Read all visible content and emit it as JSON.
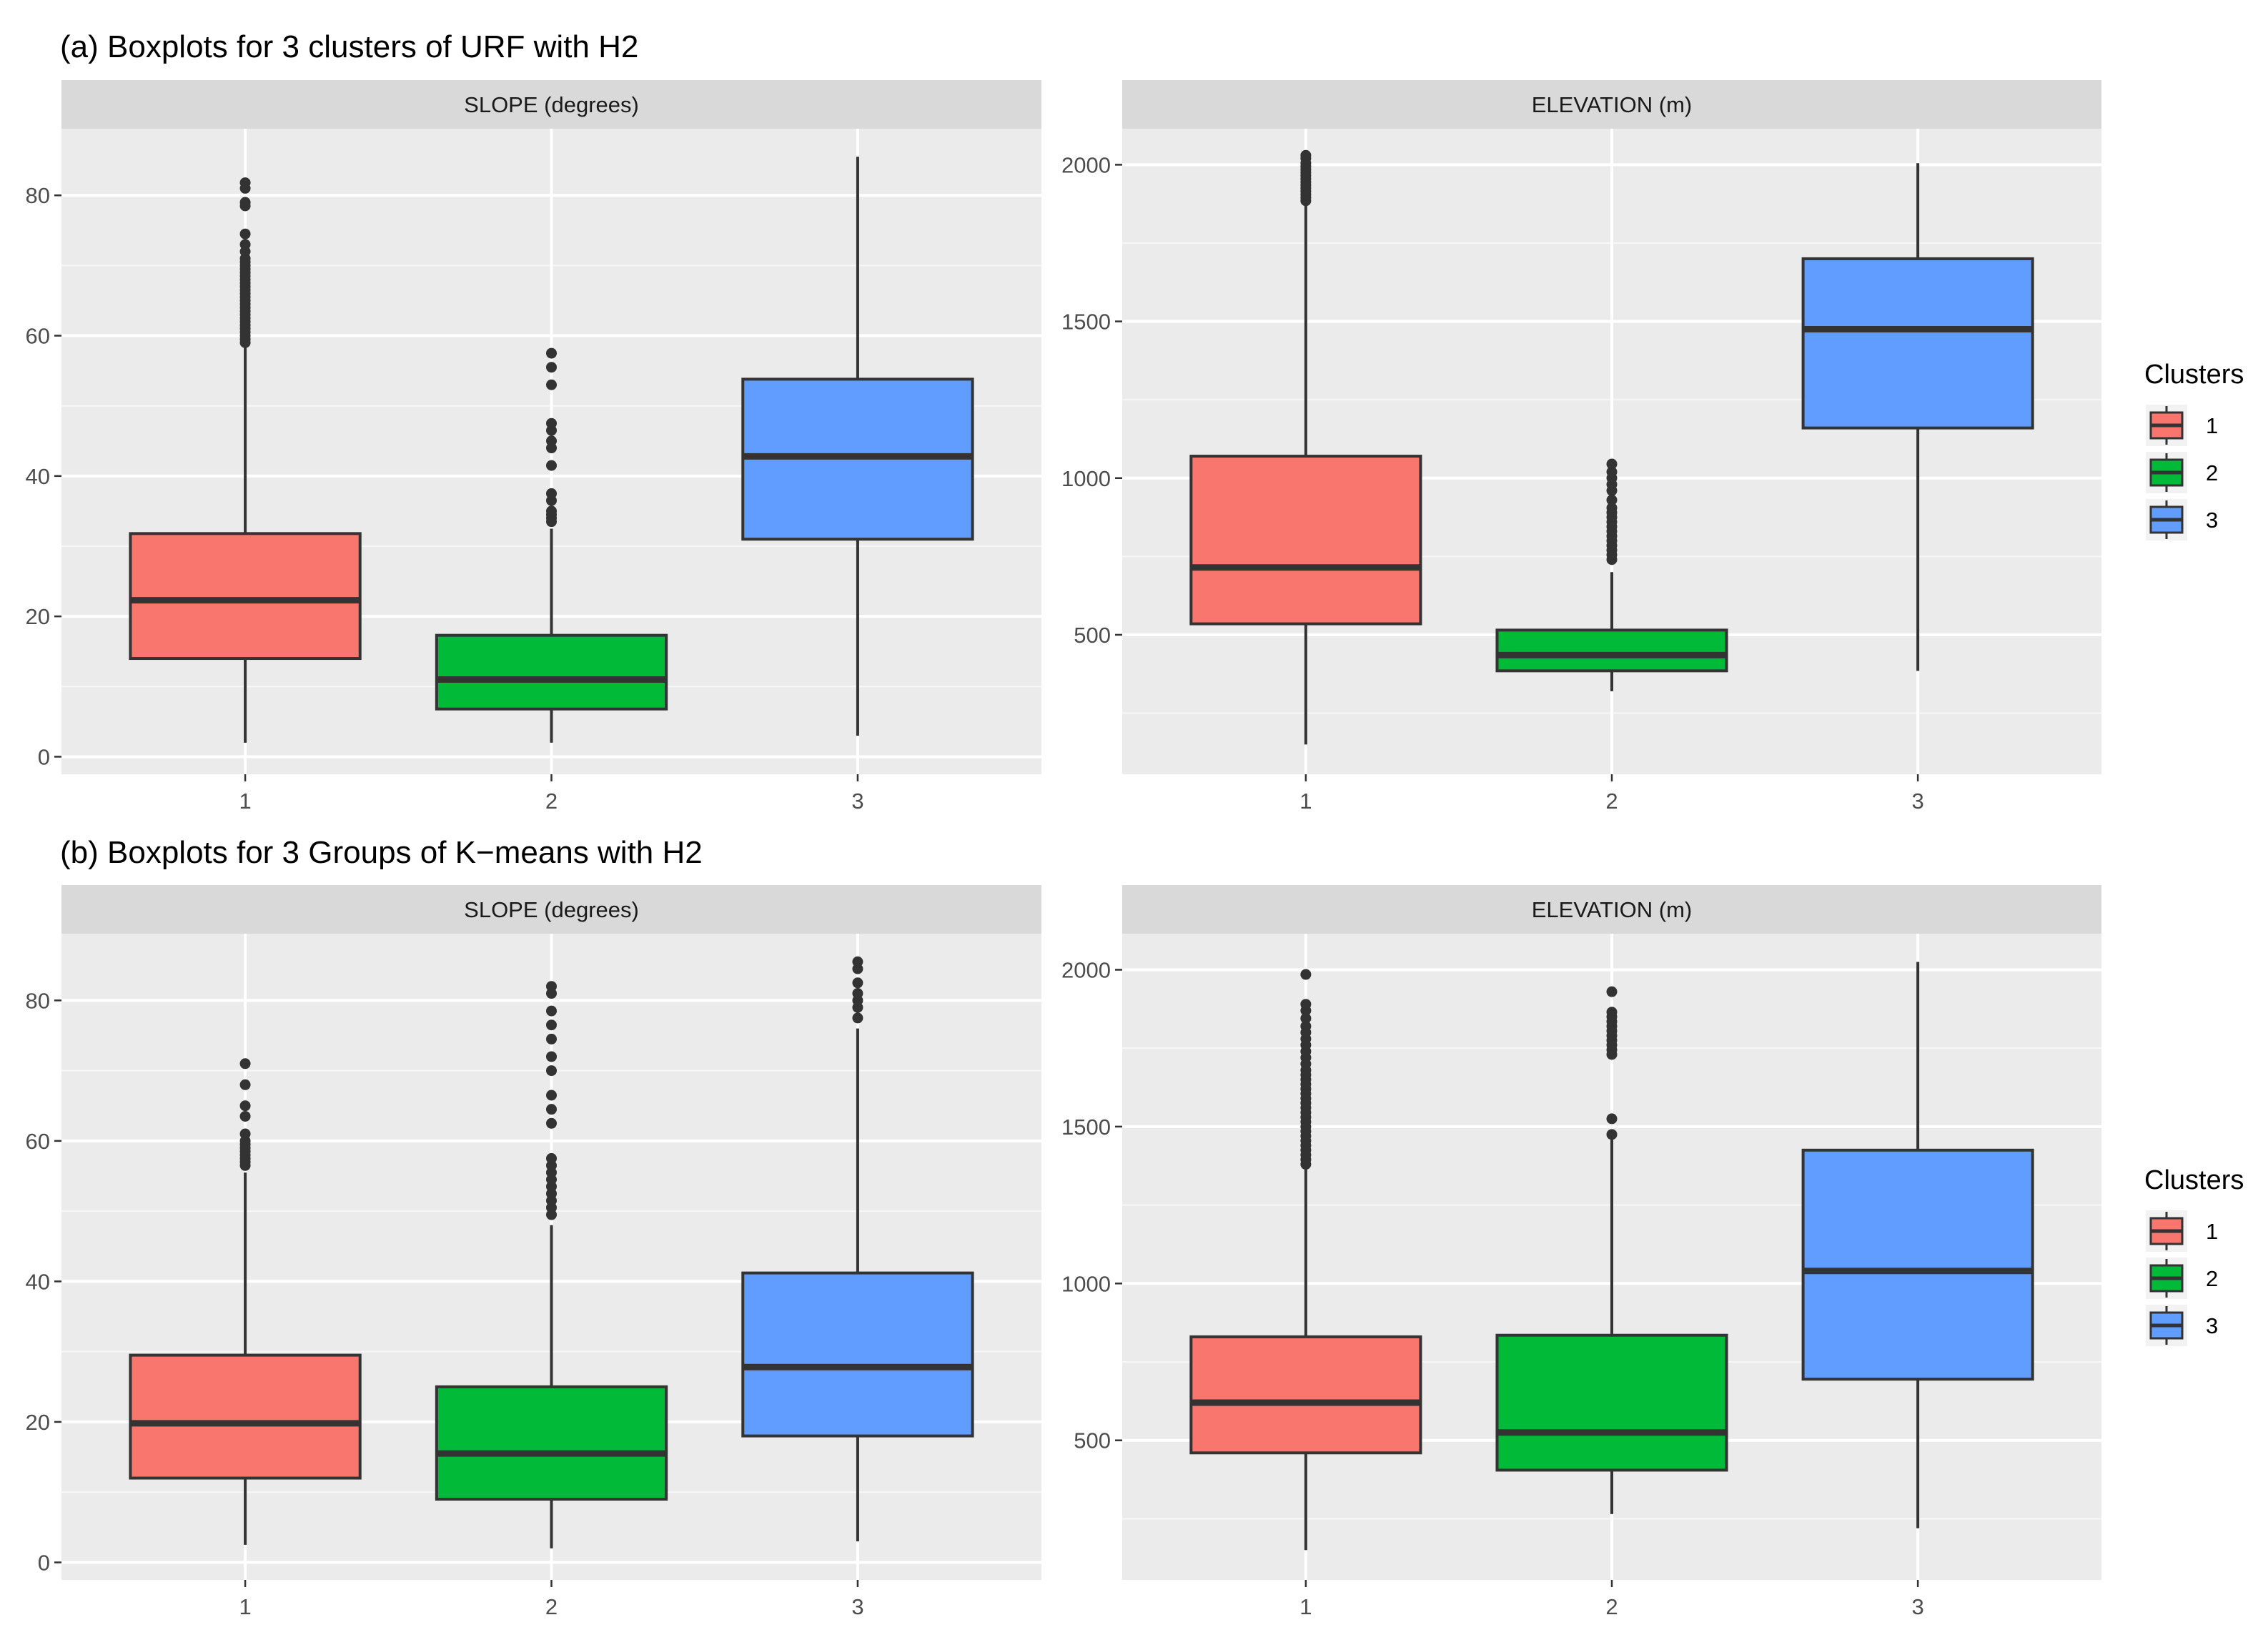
{
  "figure": {
    "panel_a_title": "(a) Boxplots for 3 clusters of URF with H2",
    "panel_b_title": "(b) Boxplots for 3 Groups of K−means with H2"
  },
  "legend": {
    "title": "Clusters",
    "items": [
      {
        "label": "1",
        "color": "#F8766D"
      },
      {
        "label": "2",
        "color": "#00BA38"
      },
      {
        "label": "3",
        "color": "#619CFF"
      }
    ]
  },
  "chart_data": [
    {
      "type": "boxplot",
      "panel": "a",
      "facet": "SLOPE (degrees)",
      "categories": [
        "1",
        "2",
        "3"
      ],
      "ylim": [
        -2.5,
        89.5
      ],
      "yticks": [
        0,
        20,
        40,
        60,
        80
      ],
      "boxes": [
        {
          "cluster": "1",
          "min": 2,
          "q1": 14,
          "median": 22.3,
          "q3": 31.8,
          "max": 58.5,
          "outliers": [
            59,
            59.5,
            60,
            60.5,
            61,
            61.5,
            62,
            62.5,
            63,
            63.5,
            64,
            64.5,
            65,
            65.5,
            66,
            66.5,
            67,
            67.5,
            68,
            68.5,
            69,
            69.5,
            70,
            70.5,
            71,
            72,
            73,
            74.5,
            78.5,
            79,
            81,
            81.8
          ]
        },
        {
          "cluster": "2",
          "min": 2,
          "q1": 6.8,
          "median": 11,
          "q3": 17.3,
          "max": 32.5,
          "outliers": [
            33.5,
            34,
            34.5,
            35,
            36.5,
            37.5,
            41.5,
            44,
            45,
            46.5,
            47.5,
            53,
            55.5,
            57.5
          ]
        },
        {
          "cluster": "3",
          "min": 3,
          "q1": 31,
          "median": 42.8,
          "q3": 53.8,
          "max": 85.5,
          "outliers": []
        }
      ]
    },
    {
      "type": "boxplot",
      "panel": "a",
      "facet": "ELEVATION (m)",
      "categories": [
        "1",
        "2",
        "3"
      ],
      "ylim": [
        55,
        2115
      ],
      "yticks": [
        500,
        1000,
        1500,
        2000
      ],
      "boxes": [
        {
          "cluster": "1",
          "min": 150,
          "q1": 535,
          "median": 715,
          "q3": 1070,
          "max": 1880,
          "outliers": [
            1885,
            1895,
            1905,
            1915,
            1925,
            1935,
            1945,
            1955,
            1965,
            1975,
            1985,
            1995,
            2005,
            2020,
            2030
          ]
        },
        {
          "cluster": "2",
          "min": 320,
          "q1": 385,
          "median": 435,
          "q3": 515,
          "max": 700,
          "outliers": [
            740,
            755,
            770,
            785,
            800,
            815,
            830,
            845,
            860,
            875,
            890,
            905,
            930,
            960,
            980,
            1000,
            1020,
            1045
          ]
        },
        {
          "cluster": "3",
          "min": 385,
          "q1": 1160,
          "median": 1475,
          "q3": 1700,
          "max": 2005,
          "outliers": []
        }
      ]
    },
    {
      "type": "boxplot",
      "panel": "b",
      "facet": "SLOPE (degrees)",
      "categories": [
        "1",
        "2",
        "3"
      ],
      "ylim": [
        -2.5,
        89.5
      ],
      "yticks": [
        0,
        20,
        40,
        60,
        80
      ],
      "boxes": [
        {
          "cluster": "1",
          "min": 2.5,
          "q1": 12,
          "median": 19.8,
          "q3": 29.5,
          "max": 55.5,
          "outliers": [
            56.5,
            57,
            57.5,
            58,
            58.5,
            59,
            59.5,
            60,
            61,
            63.5,
            65,
            68,
            71
          ]
        },
        {
          "cluster": "2",
          "min": 2,
          "q1": 9,
          "median": 15.5,
          "q3": 25,
          "max": 48,
          "outliers": [
            49.5,
            50.5,
            51.5,
            52.5,
            53.5,
            54.5,
            55.5,
            56.5,
            57.5,
            62.5,
            64.5,
            66.5,
            70,
            72,
            74.5,
            76.5,
            78.5,
            81,
            82
          ]
        },
        {
          "cluster": "3",
          "min": 3,
          "q1": 18,
          "median": 27.8,
          "q3": 41.2,
          "max": 76,
          "outliers": [
            77.5,
            79,
            80,
            81,
            82.5,
            84.5,
            85.5
          ]
        }
      ]
    },
    {
      "type": "boxplot",
      "panel": "b",
      "facet": "ELEVATION (m)",
      "categories": [
        "1",
        "2",
        "3"
      ],
      "ylim": [
        55,
        2115
      ],
      "yticks": [
        500,
        1000,
        1500,
        2000
      ],
      "boxes": [
        {
          "cluster": "1",
          "min": 150,
          "q1": 460,
          "median": 620,
          "q3": 830,
          "max": 1370,
          "outliers": [
            1380,
            1395,
            1410,
            1425,
            1440,
            1455,
            1470,
            1485,
            1500,
            1515,
            1530,
            1545,
            1560,
            1575,
            1590,
            1605,
            1620,
            1635,
            1650,
            1665,
            1680,
            1700,
            1720,
            1740,
            1760,
            1780,
            1800,
            1820,
            1845,
            1870,
            1890,
            1985
          ]
        },
        {
          "cluster": "2",
          "min": 265,
          "q1": 405,
          "median": 525,
          "q3": 835,
          "max": 1460,
          "outliers": [
            1475,
            1525,
            1730,
            1745,
            1760,
            1775,
            1790,
            1805,
            1820,
            1835,
            1850,
            1865,
            1930
          ]
        },
        {
          "cluster": "3",
          "min": 220,
          "q1": 695,
          "median": 1040,
          "q3": 1425,
          "max": 2025,
          "outliers": []
        }
      ]
    }
  ]
}
